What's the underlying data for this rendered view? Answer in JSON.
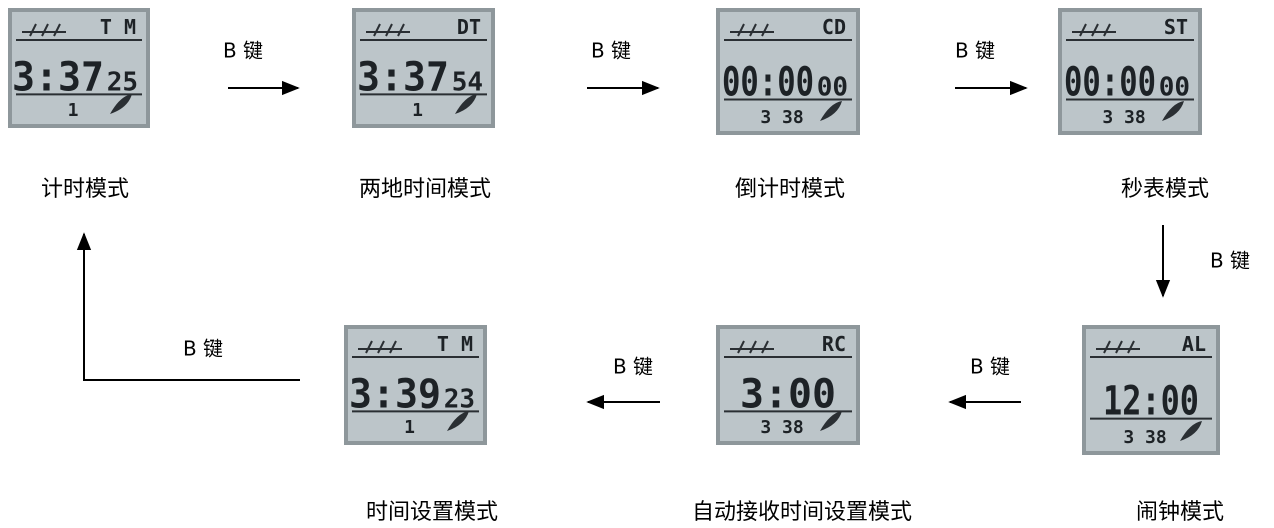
{
  "modes": [
    {
      "label": "计时模式",
      "lcd": {
        "mode": "T M",
        "time": "3:37",
        "seconds": "25",
        "bottom": "1"
      }
    },
    {
      "label": "两地时间模式",
      "lcd": {
        "mode": "DT",
        "time": "3:37",
        "seconds": "54",
        "bottom": "1"
      }
    },
    {
      "label": "倒计时模式",
      "lcd": {
        "mode": "CD",
        "time": "00:00",
        "seconds": "00",
        "bottom": "3 38"
      }
    },
    {
      "label": "秒表模式",
      "lcd": {
        "mode": "ST",
        "time": "00:00",
        "seconds": "00",
        "bottom": "3 38"
      }
    },
    {
      "label": "闹钟模式",
      "lcd": {
        "mode": "AL",
        "time": "12:00",
        "bottom": "3 38"
      }
    },
    {
      "label": "自动接收时间设置模式",
      "lcd": {
        "mode": "RC",
        "time": "3:00",
        "bottom": "3 38"
      }
    },
    {
      "label": "时间设置模式",
      "lcd": {
        "mode": "T M",
        "time": "3:39",
        "seconds": "23",
        "bottom": "1"
      }
    }
  ],
  "transitions": [
    {
      "label": "B 键"
    },
    {
      "label": "B 键"
    },
    {
      "label": "B 键"
    },
    {
      "label": "B 键"
    },
    {
      "label": "B 键"
    },
    {
      "label": "B 键"
    },
    {
      "label": "B 键"
    }
  ]
}
